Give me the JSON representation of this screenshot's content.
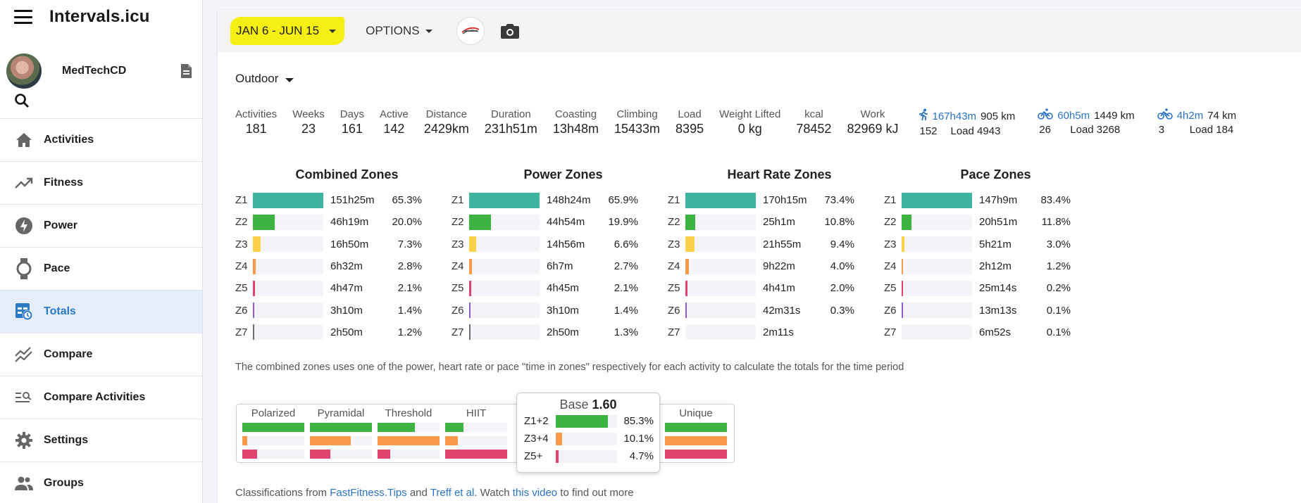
{
  "app": {
    "title": "Intervals.icu"
  },
  "user": {
    "name": "MedTechCD"
  },
  "sidebar": {
    "items": [
      {
        "label": "Activities",
        "icon": "home-icon"
      },
      {
        "label": "Fitness",
        "icon": "trending-up-icon"
      },
      {
        "label": "Power",
        "icon": "bolt-icon"
      },
      {
        "label": "Pace",
        "icon": "watch-icon"
      },
      {
        "label": "Totals",
        "icon": "totals-icon",
        "active": true
      },
      {
        "label": "Compare",
        "icon": "compare-icon"
      },
      {
        "label": "Compare Activities",
        "icon": "compare-activities-icon"
      },
      {
        "label": "Settings",
        "icon": "gear-icon"
      },
      {
        "label": "Groups",
        "icon": "groups-icon"
      }
    ]
  },
  "toolbar": {
    "date_range": "JAN 6 - JUN 15",
    "options_label": "OPTIONS"
  },
  "filter": {
    "label": "Outdoor"
  },
  "stats": [
    {
      "label": "Activities",
      "value": "181"
    },
    {
      "label": "Weeks",
      "value": "23"
    },
    {
      "label": "Days",
      "value": "161"
    },
    {
      "label": "Active",
      "value": "142"
    },
    {
      "label": "Distance",
      "value": "2429km"
    },
    {
      "label": "Duration",
      "value": "231h51m"
    },
    {
      "label": "Coasting",
      "value": "13h48m"
    },
    {
      "label": "Climbing",
      "value": "15433m"
    },
    {
      "label": "Load",
      "value": "8395"
    },
    {
      "label": "Weight Lifted",
      "value": "0 kg"
    },
    {
      "label": "kcal",
      "value": "78452"
    },
    {
      "label": "Work",
      "value": "82969 kJ"
    }
  ],
  "sports": [
    {
      "icon": "run-icon",
      "time": "167h43m",
      "distance": "905 km",
      "count": "152",
      "load": "Load 4943"
    },
    {
      "icon": "bike-icon",
      "time": "60h5m",
      "distance": "1449 km",
      "count": "26",
      "load": "Load 3268"
    },
    {
      "icon": "bike-icon",
      "time": "4h2m",
      "distance": "74 km",
      "count": "3",
      "load": "Load 184"
    }
  ],
  "zone_colors": [
    "#3db5a0",
    "#3db343",
    "#fdd14a",
    "#fb9a4b",
    "#e2426f",
    "#8e5bd6",
    "#6b6b7a"
  ],
  "zone_tables": [
    {
      "title": "Combined Zones",
      "rows": [
        {
          "zone": "Z1",
          "time": "151h25m",
          "pct": "65.3%",
          "frac": 1.0
        },
        {
          "zone": "Z2",
          "time": "46h19m",
          "pct": "20.0%",
          "frac": 0.31
        },
        {
          "zone": "Z3",
          "time": "16h50m",
          "pct": "7.3%",
          "frac": 0.11
        },
        {
          "zone": "Z4",
          "time": "6h32m",
          "pct": "2.8%",
          "frac": 0.04
        },
        {
          "zone": "Z5",
          "time": "4h47m",
          "pct": "2.1%",
          "frac": 0.03
        },
        {
          "zone": "Z6",
          "time": "3h10m",
          "pct": "1.4%",
          "frac": 0.02
        },
        {
          "zone": "Z7",
          "time": "2h50m",
          "pct": "1.2%",
          "frac": 0.02
        }
      ]
    },
    {
      "title": "Power Zones",
      "rows": [
        {
          "zone": "Z1",
          "time": "148h24m",
          "pct": "65.9%",
          "frac": 1.0
        },
        {
          "zone": "Z2",
          "time": "44h54m",
          "pct": "19.9%",
          "frac": 0.31
        },
        {
          "zone": "Z3",
          "time": "14h56m",
          "pct": "6.6%",
          "frac": 0.1
        },
        {
          "zone": "Z4",
          "time": "6h7m",
          "pct": "2.7%",
          "frac": 0.04
        },
        {
          "zone": "Z5",
          "time": "4h45m",
          "pct": "2.1%",
          "frac": 0.03
        },
        {
          "zone": "Z6",
          "time": "3h10m",
          "pct": "1.4%",
          "frac": 0.02
        },
        {
          "zone": "Z7",
          "time": "2h50m",
          "pct": "1.3%",
          "frac": 0.02
        }
      ]
    },
    {
      "title": "Heart Rate Zones",
      "rows": [
        {
          "zone": "Z1",
          "time": "170h15m",
          "pct": "73.4%",
          "frac": 1.0
        },
        {
          "zone": "Z2",
          "time": "25h1m",
          "pct": "10.8%",
          "frac": 0.14
        },
        {
          "zone": "Z3",
          "time": "21h55m",
          "pct": "9.4%",
          "frac": 0.13
        },
        {
          "zone": "Z4",
          "time": "9h22m",
          "pct": "4.0%",
          "frac": 0.05
        },
        {
          "zone": "Z5",
          "time": "4h41m",
          "pct": "2.0%",
          "frac": 0.03
        },
        {
          "zone": "Z6",
          "time": "42m31s",
          "pct": "0.3%",
          "frac": 0.005
        },
        {
          "zone": "Z7",
          "time": "2m11s",
          "pct": "",
          "frac": 0
        }
      ]
    },
    {
      "title": "Pace Zones",
      "rows": [
        {
          "zone": "Z1",
          "time": "147h9m",
          "pct": "83.4%",
          "frac": 1.0
        },
        {
          "zone": "Z2",
          "time": "20h51m",
          "pct": "11.8%",
          "frac": 0.14
        },
        {
          "zone": "Z3",
          "time": "5h21m",
          "pct": "3.0%",
          "frac": 0.04
        },
        {
          "zone": "Z4",
          "time": "2h12m",
          "pct": "1.2%",
          "frac": 0.02
        },
        {
          "zone": "Z5",
          "time": "25m14s",
          "pct": "0.2%",
          "frac": 0.005
        },
        {
          "zone": "Z6",
          "time": "13m13s",
          "pct": "0.1%",
          "frac": 0.005
        },
        {
          "zone": "Z7",
          "time": "6m52s",
          "pct": "0.1%",
          "frac": 0
        }
      ]
    }
  ],
  "note": "The combined zones uses one of the power, heart rate or pace \"time in zones\" respectively for each activity to calculate the totals for the time period",
  "classifications": {
    "colors": [
      "#3db343",
      "#fb9a4b",
      "#e2426f"
    ],
    "items": [
      {
        "label": "Polarized",
        "fracs": [
          1.0,
          0.08,
          0.24
        ]
      },
      {
        "label": "Pyramidal",
        "fracs": [
          1.0,
          0.66,
          0.33
        ]
      },
      {
        "label": "Threshold",
        "fracs": [
          0.6,
          1.0,
          0.2
        ]
      },
      {
        "label": "HIIT",
        "fracs": [
          0.3,
          0.2,
          1.0
        ]
      },
      {
        "label": "Unique",
        "fracs": [
          1.0,
          1.0,
          1.0
        ]
      }
    ]
  },
  "tooltip": {
    "title": "Base",
    "value": "1.60",
    "rows": [
      {
        "label": "Z1+2",
        "pct": "85.3%",
        "frac": 0.853
      },
      {
        "label": "Z3+4",
        "pct": "10.1%",
        "frac": 0.101
      },
      {
        "label": "Z5+",
        "pct": "4.7%",
        "frac": 0.047
      }
    ]
  },
  "footer": {
    "prefix": "Classifications from ",
    "link1": "FastFitness.Tips",
    "mid1": " and ",
    "link2": "Treff et al",
    "mid2": ". Watch ",
    "link3": "this video",
    "suffix": " to find out more"
  }
}
